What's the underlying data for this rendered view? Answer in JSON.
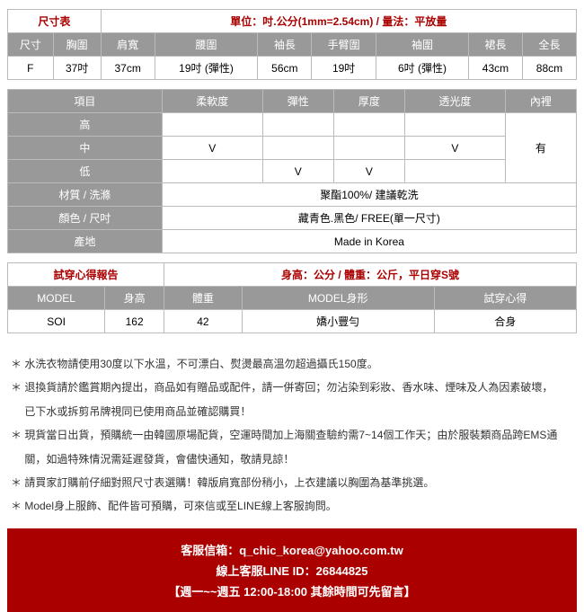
{
  "size_table": {
    "title_left": "尺寸表",
    "title_right": "單位：吋.公分(1mm=2.54cm) / 量法：平放量",
    "headers": [
      "尺寸",
      "胸圍",
      "肩寬",
      "腰圍",
      "袖長",
      "手臂圍",
      "袖圍",
      "裙長",
      "全長"
    ],
    "row": [
      "F",
      "37吋",
      "37cm",
      "19吋 (彈性)",
      "56cm",
      "19吋",
      "6吋 (彈性)",
      "43cm",
      "88cm"
    ]
  },
  "prop_table": {
    "headers": [
      "項目",
      "柔軟度",
      "彈性",
      "厚度",
      "透光度",
      "內裡"
    ],
    "levels": [
      "高",
      "中",
      "低"
    ],
    "grid": [
      [
        "",
        "",
        "",
        "",
        ""
      ],
      [
        "V",
        "",
        "",
        "V",
        ""
      ],
      [
        "",
        "V",
        "V",
        "",
        ""
      ]
    ],
    "lining": "有",
    "material_label": "材質 / 洗滌",
    "material_value": "聚酯100%/ 建議乾洗",
    "color_label": "顏色 / 尺吋",
    "color_value": "藏青色.黑色/ FREE(單一尺寸)",
    "origin_label": "產地",
    "origin_value": "Made in Korea"
  },
  "fit_table": {
    "title_left": "試穿心得報告",
    "title_right": "身高：公分 / 體重：公斤，平日穿S號",
    "headers": [
      "MODEL",
      "身高",
      "體重",
      "MODEL身形",
      "試穿心得"
    ],
    "row": [
      "SOI",
      "162",
      "42",
      "嬌小豐勻",
      "合身"
    ]
  },
  "notes": [
    "＊ 水洗衣物請使用30度以下水溫，不可漂白、熨燙最高溫勿超過攝氏150度。",
    "＊ 退換貨請於鑑賞期內提出，商品如有贈品或配件，請一併寄回；勿沾染到彩妝、香水味、煙味及人為因素破壞，",
    "　 已下水或拆剪吊牌視同已使用商品並確認購買！",
    "＊ 現貨當日出貨，預購統一由韓國原場配貨，空運時間加上海關查驗約需7~14個工作天；由於服裝類商品跨EMS通",
    "　 關，如過特殊情況需延遲發貨，會儘快通知，敬請見諒！",
    "＊ 請買家訂購前仔細對照尺寸表選購！韓版肩寬部份稍小，上衣建議以胸圍為基準挑選。",
    "＊ Model身上服飾、配件皆可預購，可來信或至LINE線上客服詢問。"
  ],
  "footer": {
    "email": "客服信箱：q_chic_korea@yahoo.com.tw",
    "line": "線上客服LINE ID：26844825",
    "hours": "【週一~~週五 12:00-18:00 其餘時間可先留言】"
  },
  "colors": {
    "red": "#a00",
    "gray": "#999"
  }
}
